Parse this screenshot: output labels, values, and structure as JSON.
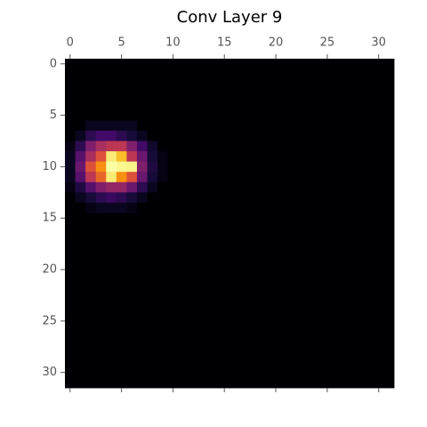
{
  "chart_data": {
    "type": "heatmap",
    "title": "Conv Layer 9",
    "colormap": "inferno",
    "xlim": [
      -0.5,
      31.5
    ],
    "ylim": [
      -0.5,
      31.5
    ],
    "xticks": [
      0,
      5,
      10,
      15,
      20,
      25,
      30
    ],
    "yticks": [
      0,
      5,
      10,
      15,
      20,
      25,
      30
    ],
    "values": [
      [
        0,
        0,
        0,
        0,
        0,
        0,
        0,
        0,
        0,
        0,
        0,
        0,
        0,
        0,
        0,
        0,
        0,
        0,
        0,
        0,
        0,
        0,
        0,
        0,
        0,
        0,
        0,
        0,
        0,
        0,
        0,
        0
      ],
      [
        0,
        0,
        0,
        0,
        0,
        0,
        0,
        0,
        0,
        0,
        0,
        0,
        0,
        0,
        0,
        0,
        0,
        0,
        0,
        0,
        0,
        0,
        0,
        0,
        0,
        0,
        0,
        0,
        0,
        0,
        0,
        0
      ],
      [
        0,
        0,
        0,
        0,
        0,
        0,
        0,
        0,
        0,
        0,
        0,
        0,
        0,
        0,
        0,
        0,
        0,
        0,
        0,
        0,
        0,
        0,
        0,
        0,
        0,
        0,
        0,
        0,
        0,
        0,
        0,
        0
      ],
      [
        0,
        0,
        0,
        0,
        0,
        0,
        0,
        0,
        0,
        0,
        0,
        0,
        0,
        0,
        0,
        0,
        0,
        0,
        0,
        0,
        0,
        0,
        0,
        0,
        0,
        0,
        0,
        0,
        0,
        0,
        0,
        0
      ],
      [
        0,
        0,
        0,
        0,
        0,
        0,
        0,
        0,
        0,
        0,
        0,
        0,
        0,
        0,
        0,
        0,
        0,
        0,
        0,
        0,
        0,
        0,
        0,
        0,
        0,
        0,
        0,
        0,
        0,
        0,
        0,
        0
      ],
      [
        0,
        0,
        0,
        0,
        0,
        0,
        0,
        0,
        0,
        0,
        0,
        0,
        0,
        0,
        0,
        0,
        0,
        0,
        0,
        0,
        0,
        0,
        0,
        0,
        0,
        0,
        0,
        0,
        0,
        0,
        0,
        0
      ],
      [
        0,
        0,
        0.05,
        0.05,
        0.05,
        0.05,
        0.05,
        0,
        0,
        0,
        0,
        0,
        0,
        0,
        0,
        0,
        0,
        0,
        0,
        0,
        0,
        0,
        0,
        0,
        0,
        0,
        0,
        0,
        0,
        0,
        0,
        0
      ],
      [
        0,
        0.05,
        0.15,
        0.2,
        0.2,
        0.15,
        0.1,
        0.05,
        0,
        0,
        0,
        0,
        0,
        0,
        0,
        0,
        0,
        0,
        0,
        0,
        0,
        0,
        0,
        0,
        0,
        0,
        0,
        0,
        0,
        0,
        0,
        0
      ],
      [
        0.03,
        0.15,
        0.35,
        0.45,
        0.5,
        0.5,
        0.35,
        0.2,
        0.08,
        0,
        0,
        0,
        0,
        0,
        0,
        0,
        0,
        0,
        0,
        0,
        0,
        0,
        0,
        0,
        0,
        0,
        0,
        0,
        0,
        0,
        0,
        0
      ],
      [
        0.05,
        0.25,
        0.45,
        0.6,
        0.95,
        0.85,
        0.5,
        0.3,
        0.1,
        0.03,
        0,
        0,
        0,
        0,
        0,
        0,
        0,
        0,
        0,
        0,
        0,
        0,
        0,
        0,
        0,
        0,
        0,
        0,
        0,
        0,
        0,
        0
      ],
      [
        0.05,
        0.3,
        0.6,
        0.75,
        1,
        0.98,
        0.97,
        0.35,
        0.12,
        0.03,
        0,
        0,
        0,
        0,
        0,
        0,
        0,
        0,
        0,
        0,
        0,
        0,
        0,
        0,
        0,
        0,
        0,
        0,
        0,
        0,
        0,
        0
      ],
      [
        0.05,
        0.25,
        0.5,
        0.65,
        0.95,
        0.75,
        0.6,
        0.3,
        0.1,
        0.03,
        0,
        0,
        0,
        0,
        0,
        0,
        0,
        0,
        0,
        0,
        0,
        0,
        0,
        0,
        0,
        0,
        0,
        0,
        0,
        0,
        0,
        0
      ],
      [
        0.03,
        0.12,
        0.25,
        0.35,
        0.4,
        0.4,
        0.3,
        0.15,
        0.05,
        0,
        0,
        0,
        0,
        0,
        0,
        0,
        0,
        0,
        0,
        0,
        0,
        0,
        0,
        0,
        0,
        0,
        0,
        0,
        0,
        0,
        0,
        0
      ],
      [
        0,
        0.05,
        0.1,
        0.15,
        0.18,
        0.15,
        0.1,
        0.05,
        0,
        0,
        0,
        0,
        0,
        0,
        0,
        0,
        0,
        0,
        0,
        0,
        0,
        0,
        0,
        0,
        0,
        0,
        0,
        0,
        0,
        0,
        0,
        0
      ],
      [
        0,
        0,
        0.03,
        0.05,
        0.05,
        0.05,
        0.03,
        0,
        0,
        0,
        0,
        0,
        0,
        0,
        0,
        0,
        0,
        0,
        0,
        0,
        0,
        0,
        0,
        0,
        0,
        0,
        0,
        0,
        0,
        0,
        0,
        0
      ],
      [
        0,
        0,
        0,
        0,
        0,
        0,
        0,
        0,
        0,
        0,
        0,
        0,
        0,
        0,
        0,
        0,
        0,
        0,
        0,
        0,
        0,
        0,
        0,
        0,
        0,
        0,
        0,
        0,
        0,
        0,
        0,
        0
      ],
      [
        0,
        0,
        0,
        0,
        0,
        0,
        0,
        0,
        0,
        0,
        0,
        0,
        0,
        0,
        0,
        0,
        0,
        0,
        0,
        0,
        0,
        0,
        0,
        0,
        0,
        0,
        0,
        0,
        0,
        0,
        0,
        0
      ],
      [
        0,
        0,
        0,
        0,
        0,
        0,
        0,
        0,
        0,
        0,
        0,
        0,
        0,
        0,
        0,
        0,
        0,
        0,
        0,
        0,
        0,
        0,
        0,
        0,
        0,
        0,
        0,
        0,
        0,
        0,
        0,
        0
      ],
      [
        0,
        0,
        0,
        0,
        0,
        0,
        0,
        0,
        0,
        0,
        0,
        0,
        0,
        0,
        0,
        0,
        0,
        0,
        0,
        0,
        0,
        0,
        0,
        0,
        0,
        0,
        0,
        0,
        0,
        0,
        0,
        0
      ],
      [
        0,
        0,
        0,
        0,
        0,
        0,
        0,
        0,
        0,
        0,
        0,
        0,
        0,
        0,
        0,
        0,
        0,
        0,
        0,
        0,
        0,
        0,
        0,
        0,
        0,
        0,
        0,
        0,
        0,
        0,
        0,
        0
      ],
      [
        0,
        0,
        0,
        0,
        0,
        0,
        0,
        0,
        0,
        0,
        0,
        0,
        0,
        0,
        0,
        0,
        0,
        0,
        0,
        0,
        0,
        0,
        0,
        0,
        0,
        0,
        0,
        0,
        0,
        0,
        0,
        0
      ],
      [
        0,
        0,
        0,
        0,
        0,
        0,
        0,
        0,
        0,
        0,
        0,
        0,
        0,
        0,
        0,
        0,
        0,
        0,
        0,
        0,
        0,
        0,
        0,
        0,
        0,
        0,
        0,
        0,
        0,
        0,
        0,
        0
      ],
      [
        0,
        0,
        0,
        0,
        0,
        0,
        0,
        0,
        0,
        0,
        0,
        0,
        0,
        0,
        0,
        0,
        0,
        0,
        0,
        0,
        0,
        0,
        0,
        0,
        0,
        0,
        0,
        0,
        0,
        0,
        0,
        0
      ],
      [
        0,
        0,
        0,
        0,
        0,
        0,
        0,
        0,
        0,
        0,
        0,
        0,
        0,
        0,
        0,
        0,
        0,
        0,
        0,
        0,
        0,
        0,
        0,
        0,
        0,
        0,
        0,
        0,
        0,
        0,
        0,
        0
      ],
      [
        0,
        0,
        0,
        0,
        0,
        0,
        0,
        0,
        0,
        0,
        0,
        0,
        0,
        0,
        0,
        0,
        0,
        0,
        0,
        0,
        0,
        0,
        0,
        0,
        0,
        0,
        0,
        0,
        0,
        0,
        0,
        0
      ],
      [
        0,
        0,
        0,
        0,
        0,
        0,
        0,
        0,
        0,
        0,
        0,
        0,
        0,
        0,
        0,
        0,
        0,
        0,
        0,
        0,
        0,
        0,
        0,
        0,
        0,
        0,
        0,
        0,
        0,
        0,
        0,
        0
      ],
      [
        0,
        0,
        0,
        0,
        0,
        0,
        0,
        0,
        0,
        0,
        0,
        0,
        0,
        0,
        0,
        0,
        0,
        0,
        0,
        0,
        0,
        0,
        0,
        0,
        0,
        0,
        0,
        0,
        0,
        0,
        0,
        0
      ],
      [
        0,
        0,
        0,
        0,
        0,
        0,
        0,
        0,
        0,
        0,
        0,
        0,
        0,
        0,
        0,
        0,
        0,
        0,
        0,
        0,
        0,
        0,
        0,
        0,
        0,
        0,
        0,
        0,
        0,
        0,
        0,
        0
      ],
      [
        0,
        0,
        0,
        0,
        0,
        0,
        0,
        0,
        0,
        0,
        0,
        0,
        0,
        0,
        0,
        0,
        0,
        0,
        0,
        0,
        0,
        0,
        0,
        0,
        0,
        0,
        0,
        0,
        0,
        0,
        0,
        0
      ],
      [
        0,
        0,
        0,
        0,
        0,
        0,
        0,
        0,
        0,
        0,
        0,
        0,
        0,
        0,
        0,
        0,
        0,
        0,
        0,
        0,
        0,
        0,
        0,
        0,
        0,
        0,
        0,
        0,
        0,
        0,
        0,
        0
      ],
      [
        0,
        0,
        0,
        0,
        0,
        0,
        0,
        0,
        0,
        0,
        0,
        0,
        0,
        0,
        0,
        0,
        0,
        0,
        0,
        0,
        0,
        0,
        0,
        0,
        0,
        0,
        0,
        0,
        0,
        0,
        0,
        0
      ],
      [
        0,
        0,
        0,
        0,
        0,
        0,
        0,
        0,
        0,
        0,
        0,
        0,
        0,
        0,
        0,
        0,
        0,
        0,
        0,
        0,
        0,
        0,
        0,
        0,
        0,
        0,
        0,
        0,
        0,
        0,
        0,
        0
      ]
    ]
  }
}
